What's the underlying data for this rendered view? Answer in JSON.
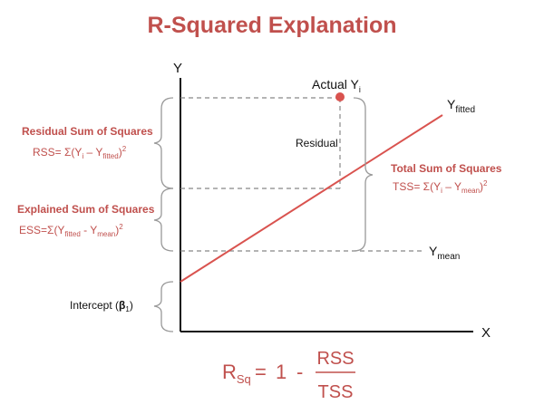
{
  "title": "R-Squared Explanation",
  "axes": {
    "y": "Y",
    "x": "X"
  },
  "labels": {
    "actual": "Actual Y",
    "actual_sub": "i",
    "residual": "Residual",
    "fitted": "Y",
    "fitted_sub": "fitted",
    "mean": "Y",
    "mean_sub": "mean",
    "intercept": "Intercept (",
    "intercept_beta": "β",
    "intercept_sub": "1",
    "intercept_close": ")"
  },
  "rss": {
    "heading": "Residual Sum of Squares",
    "lhs": "RSS= Σ(Y",
    "sub1": "i",
    "mid": " – Y",
    "sub2": "fitted",
    "close": ")",
    "sup": "2"
  },
  "ess": {
    "heading": "Explained Sum of Squares",
    "lhs": "ESS=Σ(Y",
    "sub1": "fitted",
    "mid": " - Y",
    "sub2": "mean",
    "close": ")",
    "sup": "2"
  },
  "tss": {
    "heading": "Total Sum of Squares",
    "lhs": "TSS= Σ(Y",
    "sub1": "i",
    "mid": " – Y",
    "sub2": "mean",
    "close": ")",
    "sup": "2"
  },
  "formula": {
    "lhs": "R",
    "lhs_sub": "Sq",
    "eq": "=",
    "one": "1",
    "minus": "-",
    "numerator": "RSS",
    "denominator": "TSS"
  },
  "colors": {
    "accent": "#c0504d",
    "line": "#d9534f",
    "dashes": "#888888",
    "braces": "#999999"
  }
}
